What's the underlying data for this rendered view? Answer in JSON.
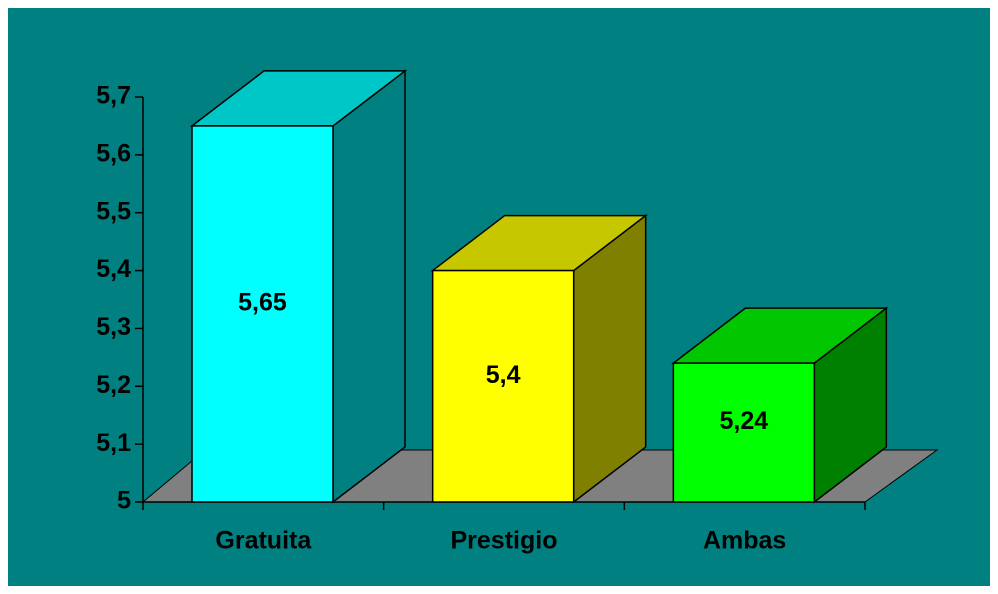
{
  "chart_data": {
    "type": "bar3d",
    "categories": [
      "Gratuita",
      "Prestigio",
      "Ambas"
    ],
    "values": [
      5.65,
      5.4,
      5.24
    ],
    "value_labels": [
      "5,65",
      "5,4",
      "5,24"
    ],
    "colors": [
      "#00ffff",
      "#ffff00",
      "#00ff00"
    ],
    "ylim": [
      5,
      5.7
    ],
    "yticks": [
      {
        "value": 5,
        "label": "5"
      },
      {
        "value": 5.1,
        "label": "5,1"
      },
      {
        "value": 5.2,
        "label": "5,2"
      },
      {
        "value": 5.3,
        "label": "5,3"
      },
      {
        "value": 5.4,
        "label": "5,4"
      },
      {
        "value": 5.5,
        "label": "5,5"
      },
      {
        "value": 5.6,
        "label": "5,6"
      },
      {
        "value": 5.7,
        "label": "5,7"
      }
    ]
  }
}
